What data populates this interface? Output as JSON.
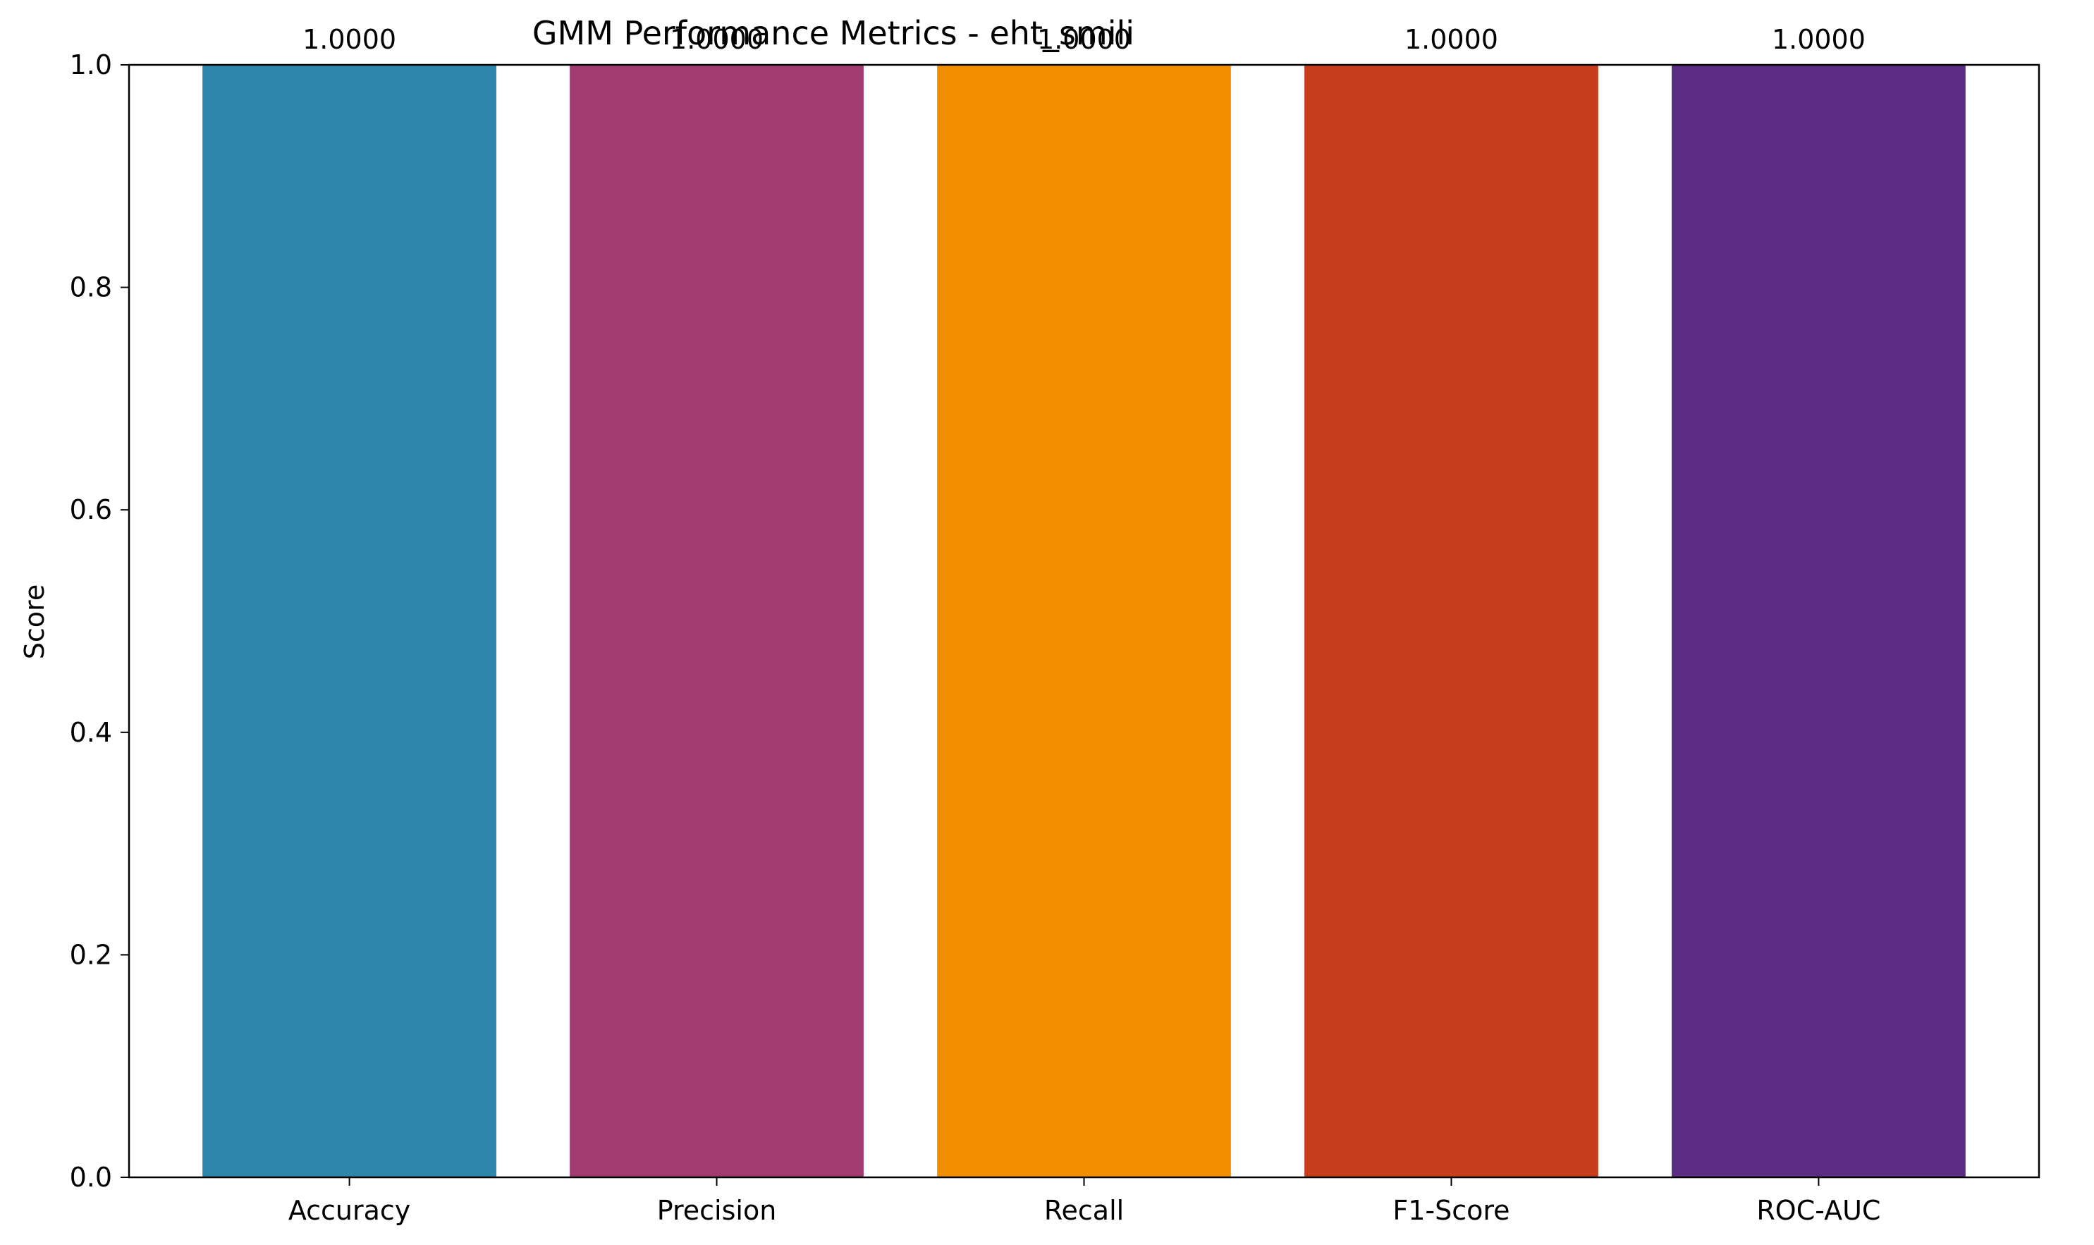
{
  "chart_data": {
    "type": "bar",
    "title": "GMM Performance Metrics - eht_smili",
    "xlabel": "",
    "ylabel": "Score",
    "categories": [
      "Accuracy",
      "Precision",
      "Recall",
      "F1-Score",
      "ROC-AUC"
    ],
    "values": [
      1.0,
      1.0,
      1.0,
      1.0,
      1.0
    ],
    "value_labels": [
      "1.0000",
      "1.0000",
      "1.0000",
      "1.0000",
      "1.0000"
    ],
    "colors": [
      "#2E86AB",
      "#A23B72",
      "#F18F01",
      "#C73E1D",
      "#5A2D82"
    ],
    "ylim": [
      0,
      1.0
    ],
    "yticks": [
      0.0,
      0.2,
      0.4,
      0.6,
      0.8,
      1.0
    ],
    "ytick_labels": [
      "0.0",
      "0.2",
      "0.4",
      "0.6",
      "0.8",
      "1.0"
    ],
    "grid": false,
    "legend": "none"
  }
}
